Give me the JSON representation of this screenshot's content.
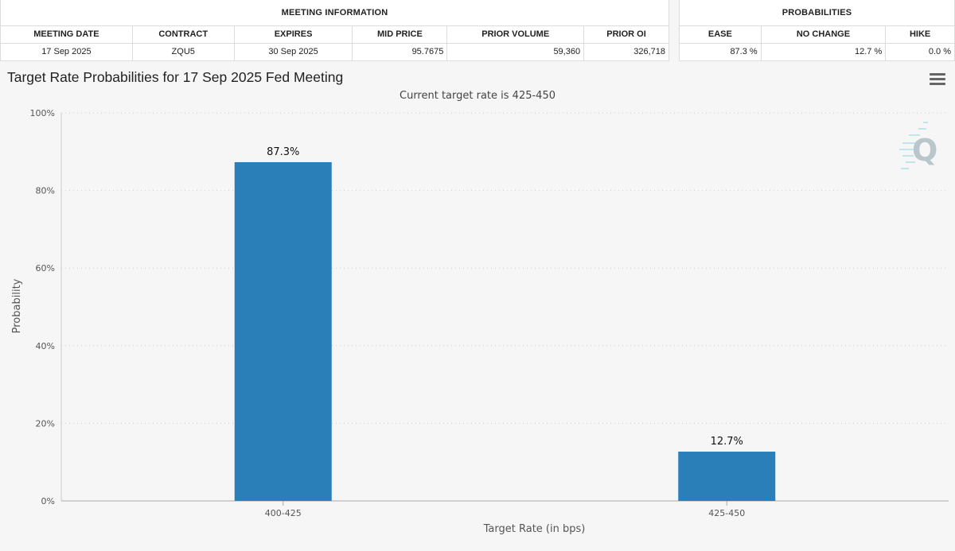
{
  "meeting_info": {
    "header": "MEETING INFORMATION",
    "columns": [
      "MEETING DATE",
      "CONTRACT",
      "EXPIRES",
      "MID PRICE",
      "PRIOR VOLUME",
      "PRIOR OI"
    ],
    "row": [
      "17 Sep 2025",
      "ZQU5",
      "30 Sep 2025",
      "95.7675",
      "59,360",
      "326,718"
    ]
  },
  "probabilities": {
    "header": "PROBABILITIES",
    "columns": [
      "EASE",
      "NO CHANGE",
      "HIKE"
    ],
    "row": [
      "87.3 %",
      "12.7 %",
      "0.0 %"
    ]
  },
  "icons": {
    "menu": "hamburger-menu-icon",
    "watermark": "q-logo-watermark"
  },
  "colors": {
    "bar": "#2b7fb8",
    "grid": "#cccccc",
    "axis": "#aaaaaa",
    "background": "#f6f6f6"
  },
  "chart_data": {
    "type": "bar",
    "title": "Target Rate Probabilities for 17 Sep 2025 Fed Meeting",
    "subtitle": "Current target rate is 425-450",
    "xlabel": "Target Rate (in bps)",
    "ylabel": "Probability",
    "categories": [
      "400-425",
      "425-450"
    ],
    "values": [
      87.3,
      12.7
    ],
    "data_labels": [
      "87.3%",
      "12.7%"
    ],
    "ylim": [
      0,
      100
    ],
    "yticks": [
      0,
      20,
      40,
      60,
      80,
      100
    ],
    "ytick_labels": [
      "0%",
      "20%",
      "40%",
      "60%",
      "80%",
      "100%"
    ],
    "grid": true,
    "legend": "none"
  }
}
